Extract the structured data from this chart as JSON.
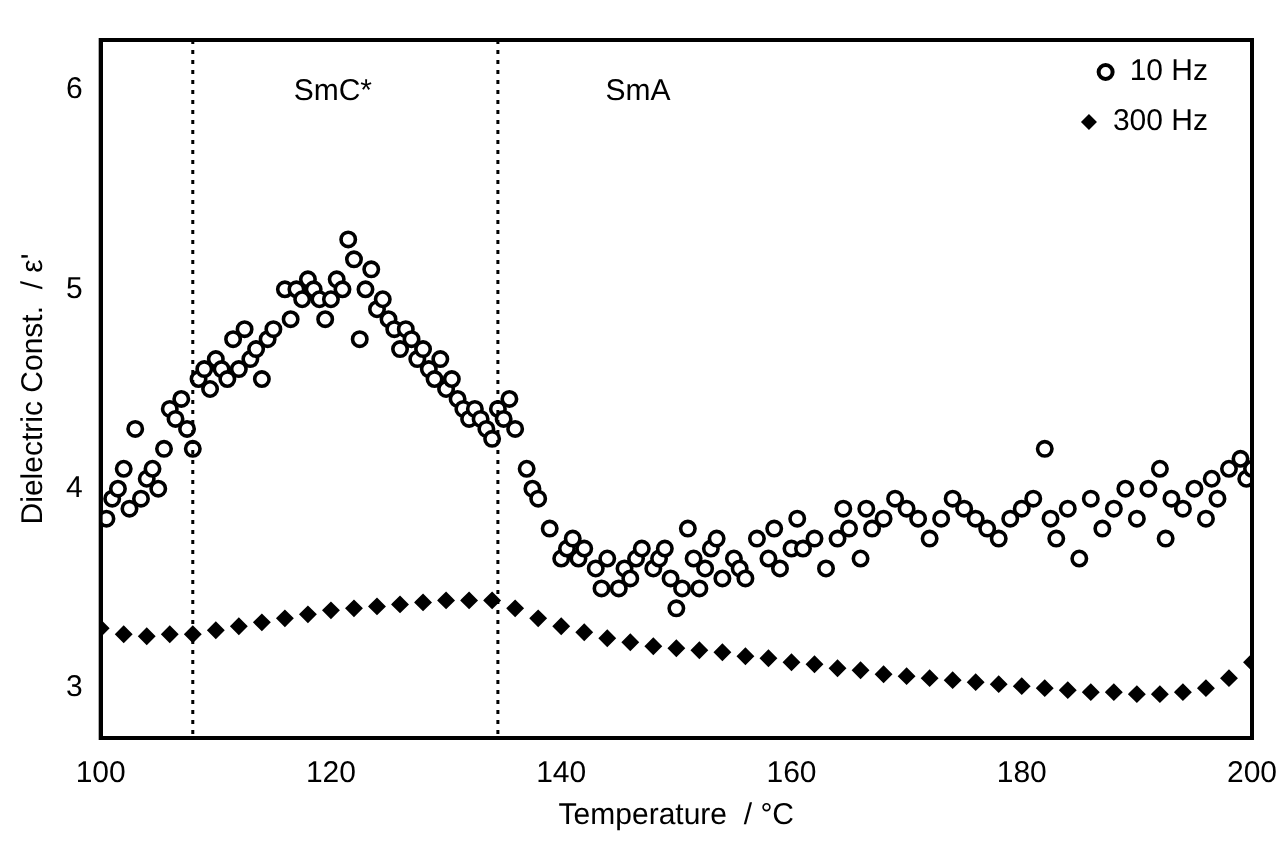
{
  "chart_data": {
    "type": "scatter",
    "xlabel": "Temperature  / °C",
    "ylabel": "Dielectric Const.  / ε'",
    "xlim": [
      100,
      200
    ],
    "xticks": [
      100,
      120,
      140,
      160,
      180,
      200
    ],
    "ylim": [
      2.75,
      6.25
    ],
    "yticks": [
      3,
      4,
      5,
      6
    ],
    "grid": false,
    "legend": "top right",
    "ref_lines": [
      {
        "axis": "x",
        "value": 108,
        "line_style": "dotted",
        "color": "#000000"
      },
      {
        "axis": "x",
        "value": 134.5,
        "line_style": "dotted",
        "color": "#000000"
      }
    ],
    "annotations": [
      "SmC*",
      "SmA"
    ],
    "series": [
      {
        "name": "10 Hz",
        "color": "#000000",
        "marker": "circle",
        "x": [
          100.5,
          101,
          101.5,
          102,
          102.5,
          103,
          103.5,
          104,
          104.5,
          105,
          105.5,
          106,
          106.5,
          107,
          107.5,
          108,
          108.5,
          109,
          109.5,
          110,
          110.5,
          111,
          111.5,
          112,
          112.5,
          113,
          113.5,
          114,
          114.5,
          115,
          116,
          116.5,
          117,
          117.5,
          118,
          118.5,
          119,
          119.5,
          120,
          120.5,
          121,
          121.5,
          122,
          122.5,
          123,
          123.5,
          124,
          124.5,
          125,
          125.5,
          126,
          126.5,
          127,
          127.5,
          128,
          128.5,
          129,
          129.5,
          130,
          130.5,
          131,
          131.5,
          132,
          132.5,
          133,
          133.5,
          134,
          134.5,
          135,
          135.5,
          136,
          137,
          137.5,
          138,
          139,
          140,
          140.5,
          141,
          141.5,
          142,
          143,
          143.5,
          144,
          145,
          145.5,
          146,
          146.5,
          147,
          148,
          148.5,
          149,
          149.5,
          150,
          150.5,
          151,
          151.5,
          152,
          152.5,
          153,
          153.5,
          154,
          155,
          155.5,
          156,
          157,
          158,
          158.5,
          159,
          160,
          160.5,
          161,
          162,
          163,
          164,
          164.5,
          165,
          166,
          166.5,
          167,
          168,
          169,
          170,
          171,
          172,
          173,
          174,
          175,
          176,
          177,
          178,
          179,
          180,
          181,
          182,
          182.5,
          183,
          184,
          185,
          186,
          187,
          188,
          189,
          190,
          191,
          192,
          192.5,
          193,
          194,
          195,
          196,
          196.5,
          197,
          198,
          199,
          199.5,
          200
        ],
        "values": [
          3.85,
          3.95,
          4.0,
          4.1,
          3.9,
          4.3,
          3.95,
          4.05,
          4.1,
          4.0,
          4.2,
          4.4,
          4.35,
          4.45,
          4.3,
          4.2,
          4.55,
          4.6,
          4.5,
          4.65,
          4.6,
          4.55,
          4.75,
          4.6,
          4.8,
          4.65,
          4.7,
          4.55,
          4.75,
          4.8,
          5.0,
          4.85,
          5.0,
          4.95,
          5.05,
          5.0,
          4.95,
          4.85,
          4.95,
          5.05,
          5.0,
          5.25,
          5.15,
          4.75,
          5.0,
          5.1,
          4.9,
          4.95,
          4.85,
          4.8,
          4.7,
          4.8,
          4.75,
          4.65,
          4.7,
          4.6,
          4.55,
          4.65,
          4.5,
          4.55,
          4.45,
          4.4,
          4.35,
          4.4,
          4.35,
          4.3,
          4.25,
          4.4,
          4.35,
          4.45,
          4.3,
          4.1,
          4.0,
          3.95,
          3.8,
          3.65,
          3.7,
          3.75,
          3.65,
          3.7,
          3.6,
          3.5,
          3.65,
          3.5,
          3.6,
          3.55,
          3.65,
          3.7,
          3.6,
          3.65,
          3.7,
          3.55,
          3.4,
          3.5,
          3.8,
          3.65,
          3.5,
          3.6,
          3.7,
          3.75,
          3.55,
          3.65,
          3.6,
          3.55,
          3.75,
          3.65,
          3.8,
          3.6,
          3.7,
          3.85,
          3.7,
          3.75,
          3.6,
          3.75,
          3.9,
          3.8,
          3.65,
          3.9,
          3.8,
          3.85,
          3.95,
          3.9,
          3.85,
          3.75,
          3.85,
          3.95,
          3.9,
          3.85,
          3.8,
          3.75,
          3.85,
          3.9,
          3.95,
          4.2,
          3.85,
          3.75,
          3.9,
          3.65,
          3.95,
          3.8,
          3.9,
          4.0,
          3.85,
          4.0,
          4.1,
          3.75,
          3.95,
          3.9,
          4.0,
          3.85,
          4.05,
          3.95,
          4.1,
          4.15,
          4.05,
          4.1
        ]
      },
      {
        "name": "300 Hz",
        "color": "#000000",
        "marker": "diamond",
        "x": [
          100,
          102,
          104,
          106,
          108,
          110,
          112,
          114,
          116,
          118,
          120,
          122,
          124,
          126,
          128,
          130,
          132,
          134,
          136,
          138,
          140,
          142,
          144,
          146,
          148,
          150,
          152,
          154,
          156,
          158,
          160,
          162,
          164,
          166,
          168,
          170,
          172,
          174,
          176,
          178,
          180,
          182,
          184,
          186,
          188,
          190,
          192,
          194,
          196,
          198,
          200
        ],
        "values": [
          3.3,
          3.27,
          3.26,
          3.27,
          3.27,
          3.29,
          3.31,
          3.33,
          3.35,
          3.37,
          3.39,
          3.4,
          3.41,
          3.42,
          3.43,
          3.44,
          3.44,
          3.44,
          3.4,
          3.35,
          3.31,
          3.28,
          3.25,
          3.23,
          3.21,
          3.2,
          3.19,
          3.18,
          3.16,
          3.15,
          3.13,
          3.12,
          3.1,
          3.09,
          3.07,
          3.06,
          3.05,
          3.04,
          3.03,
          3.02,
          3.01,
          3.0,
          2.99,
          2.98,
          2.98,
          2.97,
          2.97,
          2.98,
          3.0,
          3.05,
          3.13
        ]
      }
    ]
  }
}
